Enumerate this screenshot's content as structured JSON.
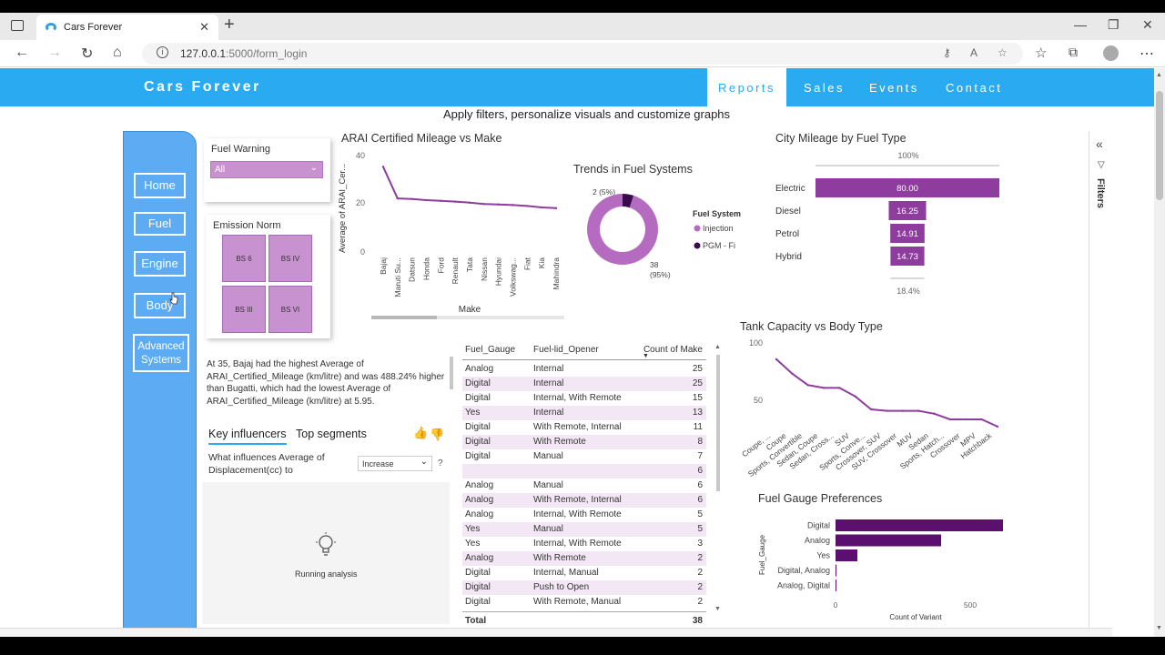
{
  "browser": {
    "tab_title": "Cars Forever",
    "url_host": "127.0.0.1",
    "url_path": ":5000/form_login",
    "new_tab": "+",
    "close_tab": "✕"
  },
  "header": {
    "brand": "Cars Forever",
    "nav": [
      "Reports",
      "Sales",
      "Events",
      "Contact"
    ]
  },
  "subtitle": "Apply filters, personalize visuals and customize graphs",
  "sidebar": {
    "items": [
      "Home",
      "Fuel",
      "Engine",
      "Body",
      "Advanced",
      "Systems"
    ]
  },
  "slicers": {
    "fuel_warning_title": "Fuel Warning",
    "fuel_warning_value": "All",
    "emission_title": "Emission Norm",
    "emission_options": [
      "BS 6",
      "BS IV",
      "BS III",
      "BS VI"
    ]
  },
  "mileage_chart": {
    "title": "ARAI Certified Mileage vs Make",
    "ylabel": "Average of ARAI_Cer...",
    "xlabel": "Make",
    "yticks": [
      "40",
      "20",
      "0"
    ]
  },
  "fuel_system_chart": {
    "title": "Trends in Fuel Systems",
    "legend_title": "Fuel System",
    "label_small": "2 (5%)",
    "label_large_1": "38",
    "label_large_2": "(95%)"
  },
  "city_mileage_chart": {
    "title": "City Mileage by Fuel Type",
    "top_label": "100%",
    "bottom_label": "18.4%"
  },
  "tank_chart": {
    "title": "Tank Capacity vs Body Type",
    "yticks": [
      "100",
      "50"
    ]
  },
  "gauge_chart": {
    "title": "Fuel Gauge Preferences",
    "ylabel": "Fuel_Gauge",
    "xlabel": "Count of Variant",
    "xticks": [
      "0",
      "500"
    ]
  },
  "narrative": {
    "text": "At 35, Bajaj had the highest Average of ARAI_Certified_Mileage (km/litre) and was 488.24% higher than Bugatti, which had the lowest Average of ARAI_Certified_Mileage (km/litre) at 5.95."
  },
  "influencers": {
    "tab1": "Key influencers",
    "tab2": "Top segments",
    "question1": "What influences Average of",
    "question2": "Displacement(cc) to",
    "dropdown": "Increase",
    "help": "?",
    "status": "Running analysis"
  },
  "table": {
    "headers": [
      "Fuel_Gauge",
      "Fuel-lid_Opener",
      "Count of Make"
    ],
    "rows": [
      [
        "Analog",
        "Internal",
        "25"
      ],
      [
        "Digital",
        "Internal",
        "25"
      ],
      [
        "Digital",
        "Internal, With Remote",
        "15"
      ],
      [
        "Yes",
        "Internal",
        "13"
      ],
      [
        "Digital",
        "With Remote, Internal",
        "11"
      ],
      [
        "Digital",
        "With Remote",
        "8"
      ],
      [
        "Digital",
        "Manual",
        "7"
      ],
      [
        "",
        "",
        "6"
      ],
      [
        "Analog",
        "Manual",
        "6"
      ],
      [
        "Analog",
        "With Remote, Internal",
        "6"
      ],
      [
        "Analog",
        "Internal, With Remote",
        "5"
      ],
      [
        "Yes",
        "Manual",
        "5"
      ],
      [
        "Yes",
        "Internal, With Remote",
        "3"
      ],
      [
        "Analog",
        "With Remote",
        "2"
      ],
      [
        "Digital",
        "Internal, Manual",
        "2"
      ],
      [
        "Digital",
        "Push to Open",
        "2"
      ],
      [
        "Digital",
        "With Remote, Manual",
        "2"
      ]
    ],
    "total_label": "Total",
    "total_value": "38"
  },
  "filters_pane": {
    "label": "Filters"
  },
  "colors": {
    "accent": "#2aaaf0",
    "purple": "#8e3c9e",
    "dark_purple": "#5b0f6e",
    "sidebar": "#5dacf3"
  },
  "chart_data": [
    {
      "type": "line",
      "title": "ARAI Certified Mileage vs Make",
      "xlabel": "Make",
      "ylabel": "Average of ARAI_Cer...",
      "categories": [
        "Bajaj",
        "Maruti Su...",
        "Datsun",
        "Honda",
        "Ford",
        "Renault",
        "Tata",
        "Nissan",
        "Hyundai",
        "Volkswag...",
        "Fiat",
        "Kia",
        "Mahindra"
      ],
      "values": [
        35,
        22,
        21.8,
        21.3,
        21,
        20.7,
        20.3,
        19.7,
        19.5,
        19.3,
        18.9,
        18.3,
        18
      ],
      "ylim": [
        0,
        40
      ]
    },
    {
      "type": "pie",
      "title": "Trends in Fuel Systems",
      "categories": [
        "Injection",
        "PGM - Fi"
      ],
      "values": [
        38,
        2
      ],
      "colors": [
        "#b56cc0",
        "#3a0a4a"
      ]
    },
    {
      "type": "bar",
      "title": "City Mileage by Fuel Type",
      "categories": [
        "Electric",
        "Diesel",
        "Petrol",
        "Hybrid"
      ],
      "values": [
        80.0,
        16.25,
        14.91,
        14.73
      ]
    },
    {
      "type": "line",
      "title": "Tank Capacity vs Body Type",
      "categories": [
        "Coupe, ...",
        "Coupe",
        "Sports, Convertible",
        "Sedan, Coupe",
        "Sedan, Cross...",
        "SUV",
        "Sports, Conve...",
        "Crossover, SUV",
        "SUV, Crossover",
        "MUV",
        "Sedan",
        "Sports, Hatch...",
        "Crossover",
        "MPV",
        "Hatchback"
      ],
      "values": [
        88,
        78,
        70,
        68,
        68,
        62,
        53,
        52,
        52,
        52,
        50,
        46,
        46,
        46,
        41
      ],
      "ylim": [
        20,
        100
      ]
    },
    {
      "type": "bar",
      "title": "Fuel Gauge Preferences",
      "xlabel": "Count of Variant",
      "ylabel": "Fuel_Gauge",
      "categories": [
        "Digital",
        "Analog",
        "Yes",
        "Digital, Analog",
        "Analog, Digital"
      ],
      "values": [
        690,
        435,
        90,
        4,
        4
      ],
      "xlim": [
        0,
        720
      ]
    }
  ]
}
